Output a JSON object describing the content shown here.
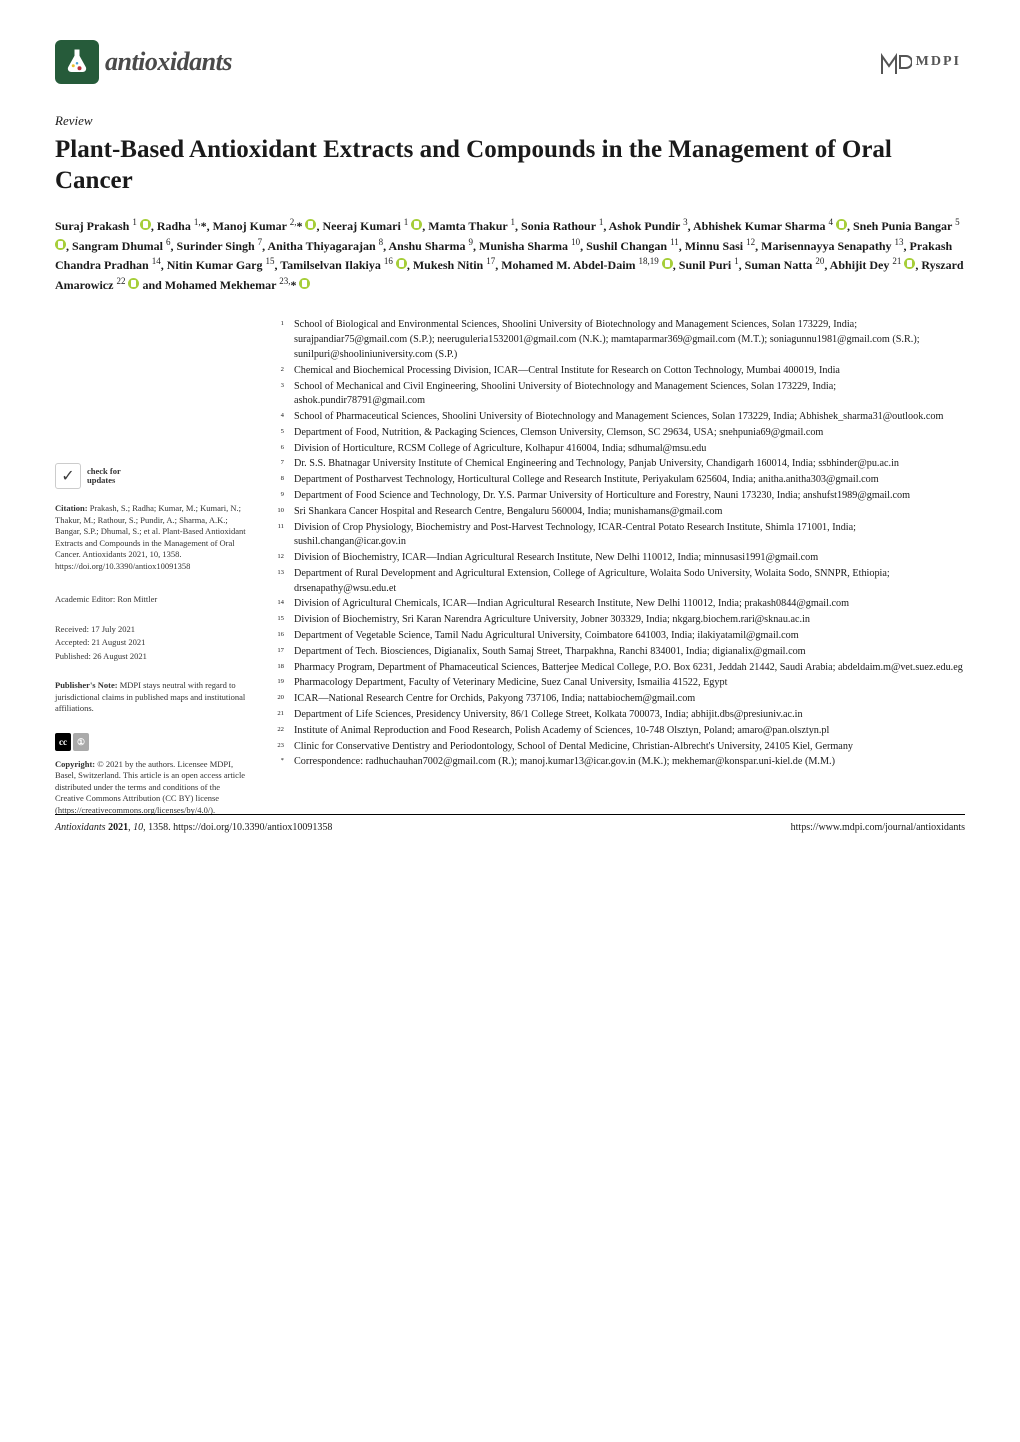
{
  "journal": {
    "name": "antioxidants",
    "flask_bg": "#265b3a"
  },
  "publisher_logo": "MDPI",
  "article_type": "Review",
  "title": "Plant-Based Antioxidant Extracts and Compounds in the Management of Oral Cancer",
  "authors_html": "Suraj Prakash <sup>1</sup> <span class='orcid' data-name='orcid-icon' data-interactable='false'></span>, Radha <sup>1,</sup>*, Manoj Kumar <sup>2,</sup>* <span class='orcid' data-name='orcid-icon' data-interactable='false'></span>, Neeraj Kumari <sup>1</sup> <span class='orcid' data-name='orcid-icon' data-interactable='false'></span>, Mamta Thakur <sup>1</sup>, Sonia Rathour <sup>1</sup>, Ashok Pundir <sup>3</sup>, Abhishek Kumar Sharma <sup>4</sup> <span class='orcid' data-name='orcid-icon' data-interactable='false'></span>, Sneh Punia Bangar <sup>5</sup> <span class='orcid' data-name='orcid-icon' data-interactable='false'></span>, Sangram Dhumal <sup>6</sup>, Surinder Singh <sup>7</sup>, Anitha Thiyagarajan <sup>8</sup>, Anshu Sharma <sup>9</sup>, Munisha Sharma <sup>10</sup>, Sushil Changan <sup>11</sup>, Minnu Sasi <sup>12</sup>, Marisennayya Senapathy <sup>13</sup>, Prakash Chandra Pradhan <sup>14</sup>, Nitin Kumar Garg <sup>15</sup>, Tamilselvan Ilakiya <sup>16</sup> <span class='orcid' data-name='orcid-icon' data-interactable='false'></span>, Mukesh Nitin <sup>17</sup>, Mohamed M. Abdel-Daim <sup>18,19</sup> <span class='orcid' data-name='orcid-icon' data-interactable='false'></span>, Sunil Puri <sup>1</sup>, Suman Natta <sup>20</sup>, Abhijit Dey <sup>21</sup> <span class='orcid' data-name='orcid-icon' data-interactable='false'></span>, Ryszard Amarowicz <sup>22</sup> <span class='orcid' data-name='orcid-icon' data-interactable='false'></span> and Mohamed Mekhemar <sup>23,</sup>* <span class='orcid' data-name='orcid-icon' data-interactable='false'></span>",
  "left": {
    "check_updates": "check for updates",
    "citation_label": "Citation:",
    "citation_text": "Prakash, S.; Radha; Kumar, M.; Kumari, N.; Thakur, M.; Rathour, S.; Pundir, A.; Sharma, A.K.; Bangar, S.P.; Dhumal, S.; et al. Plant-Based Antioxidant Extracts and Compounds in the Management of Oral Cancer. Antioxidants 2021, 10, 1358. https://doi.org/10.3390/antiox10091358",
    "editor_label": "Academic Editor:",
    "editor": "Ron Mittler",
    "received_label": "Received:",
    "received": "17 July 2021",
    "accepted_label": "Accepted:",
    "accepted": "21 August 2021",
    "published_label": "Published:",
    "published": "26 August 2021",
    "publishers_note_label": "Publisher's Note:",
    "publishers_note": "MDPI stays neutral with regard to jurisdictional claims in published maps and institutional affiliations.",
    "copyright_label": "Copyright:",
    "copyright": "© 2021 by the authors. Licensee MDPI, Basel, Switzerland. This article is an open access article distributed under the terms and conditions of the Creative Commons Attribution (CC BY) license (https://creativecommons.org/licenses/by/4.0/)."
  },
  "affiliations": [
    {
      "n": "1",
      "t": "School of Biological and Environmental Sciences, Shoolini University of Biotechnology and Management Sciences, Solan 173229, India; surajpandiar75@gmail.com (S.P.); neeruguleria1532001@gmail.com (N.K.); mamtaparmar369@gmail.com (M.T.); soniagunnu1981@gmail.com (S.R.); sunilpuri@shooliniuniversity.com (S.P.)"
    },
    {
      "n": "2",
      "t": "Chemical and Biochemical Processing Division, ICAR—Central Institute for Research on Cotton Technology, Mumbai 400019, India"
    },
    {
      "n": "3",
      "t": "School of Mechanical and Civil Engineering, Shoolini University of Biotechnology and Management Sciences, Solan 173229, India; ashok.pundir78791@gmail.com"
    },
    {
      "n": "4",
      "t": "School of Pharmaceutical Sciences, Shoolini University of Biotechnology and Management Sciences, Solan 173229, India; Abhishek_sharma31@outlook.com"
    },
    {
      "n": "5",
      "t": "Department of Food, Nutrition, & Packaging Sciences, Clemson University, Clemson, SC 29634, USA; snehpunia69@gmail.com"
    },
    {
      "n": "6",
      "t": "Division of Horticulture, RCSM College of Agriculture, Kolhapur 416004, India; sdhumal@msu.edu"
    },
    {
      "n": "7",
      "t": "Dr. S.S. Bhatnagar University Institute of Chemical Engineering and Technology, Panjab University, Chandigarh 160014, India; ssbhinder@pu.ac.in"
    },
    {
      "n": "8",
      "t": "Department of Postharvest Technology, Horticultural College and Research Institute, Periyakulam 625604, India; anitha.anitha303@gmail.com"
    },
    {
      "n": "9",
      "t": "Department of Food Science and Technology, Dr. Y.S. Parmar University of Horticulture and Forestry, Nauni 173230, India; anshufst1989@gmail.com"
    },
    {
      "n": "10",
      "t": "Sri Shankara Cancer Hospital and Research Centre, Bengaluru 560004, India; munishamans@gmail.com"
    },
    {
      "n": "11",
      "t": "Division of Crop Physiology, Biochemistry and Post-Harvest Technology, ICAR-Central Potato Research Institute, Shimla 171001, India; sushil.changan@icar.gov.in"
    },
    {
      "n": "12",
      "t": "Division of Biochemistry, ICAR—Indian Agricultural Research Institute, New Delhi 110012, India; minnusasi1991@gmail.com"
    },
    {
      "n": "13",
      "t": "Department of Rural Development and Agricultural Extension, College of Agriculture, Wolaita Sodo University, Wolaita Sodo, SNNPR, Ethiopia; drsenapathy@wsu.edu.et"
    },
    {
      "n": "14",
      "t": "Division of Agricultural Chemicals, ICAR—Indian Agricultural Research Institute, New Delhi 110012, India; prakash0844@gmail.com"
    },
    {
      "n": "15",
      "t": "Division of Biochemistry, Sri Karan Narendra Agriculture University, Jobner 303329, India; nkgarg.biochem.rari@sknau.ac.in"
    },
    {
      "n": "16",
      "t": "Department of Vegetable Science, Tamil Nadu Agricultural University, Coimbatore 641003, India; ilakiyatamil@gmail.com"
    },
    {
      "n": "17",
      "t": "Department of Tech. Biosciences, Digianalix, South Samaj Street, Tharpakhna, Ranchi 834001, India; digianalix@gmail.com"
    },
    {
      "n": "18",
      "t": "Pharmacy Program, Department of Phamaceutical Sciences, Batterjee Medical College, P.O. Box 6231, Jeddah 21442, Saudi Arabia; abdeldaim.m@vet.suez.edu.eg"
    },
    {
      "n": "19",
      "t": "Pharmacology Department, Faculty of Veterinary Medicine, Suez Canal University, Ismailia 41522, Egypt"
    },
    {
      "n": "20",
      "t": "ICAR—National Research Centre for Orchids, Pakyong 737106, India; nattabiochem@gmail.com"
    },
    {
      "n": "21",
      "t": "Department of Life Sciences, Presidency University, 86/1 College Street, Kolkata 700073, India; abhijit.dbs@presiuniv.ac.in"
    },
    {
      "n": "22",
      "t": "Institute of Animal Reproduction and Food Research, Polish Academy of Sciences, 10-748 Olsztyn, Poland; amaro@pan.olsztyn.pl"
    },
    {
      "n": "23",
      "t": "Clinic for Conservative Dentistry and Periodontology, School of Dental Medicine, Christian-Albrecht's University, 24105 Kiel, Germany"
    },
    {
      "n": "*",
      "t": "Correspondence: radhuchauhan7002@gmail.com (R.); manoj.kumar13@icar.gov.in (M.K.); mekhemar@konspar.uni-kiel.de (M.M.)"
    }
  ],
  "footer": {
    "left": "Antioxidants 2021, 10, 1358. https://doi.org/10.3390/antiox10091358",
    "right": "https://www.mdpi.com/journal/antioxidants"
  }
}
